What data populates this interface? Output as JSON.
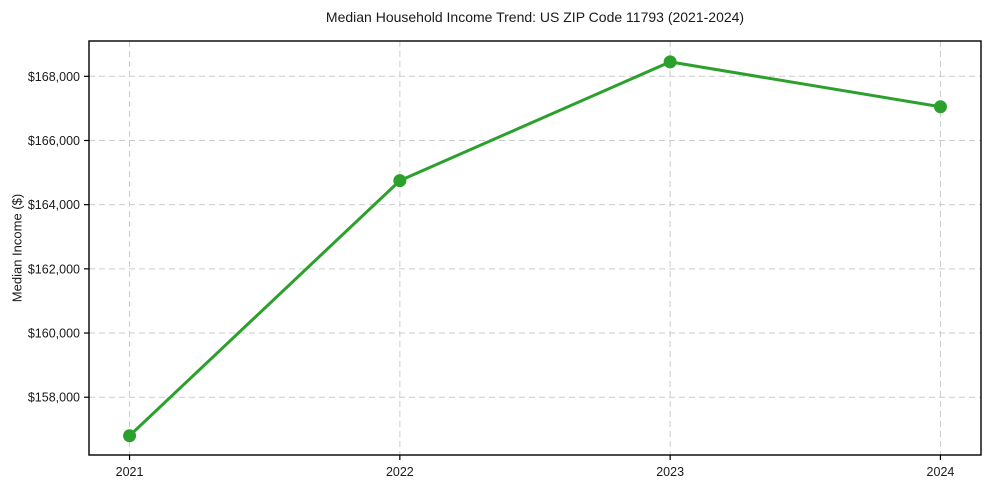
{
  "chart_data": {
    "type": "line",
    "title": "Median Household Income Trend: US ZIP Code 11793 (2021-2024)",
    "xlabel": "",
    "ylabel": "Median Income ($)",
    "x": [
      2021,
      2022,
      2023,
      2024
    ],
    "x_tick_labels": [
      "2021",
      "2022",
      "2023",
      "2024"
    ],
    "series": [
      {
        "name": "Median Household Income",
        "values": [
          156800,
          164750,
          168450,
          167050
        ]
      }
    ],
    "y_ticks": [
      158000,
      160000,
      162000,
      164000,
      166000,
      168000
    ],
    "y_tick_labels": [
      "$158,000",
      "$160,000",
      "$162,000",
      "$164,000",
      "$166,000",
      "$168,000"
    ],
    "xlim": [
      2020.85,
      2024.15
    ],
    "ylim": [
      156200,
      169100
    ],
    "grid": true,
    "grid_style": "dashed",
    "legend_position": "none",
    "colors": {
      "line": "#2ca02c",
      "marker": "#2ca02c",
      "grid": "#cccccc",
      "axis": "#000000",
      "text": "#1a1a1a",
      "background": "#ffffff"
    }
  }
}
